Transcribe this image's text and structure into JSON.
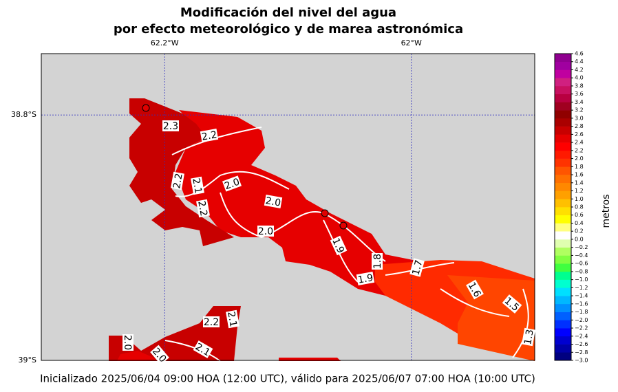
{
  "title_line1": "Modificación del nivel del agua",
  "title_line2": "por efecto meteorológico y de marea astronómica",
  "map": {
    "xlim": [
      -62.3,
      -61.9
    ],
    "ylim": [
      -39,
      -38.75
    ],
    "xticks": [
      {
        "value": -62.2,
        "label": "62.2°W"
      },
      {
        "value": -62,
        "label": "62°W"
      }
    ],
    "yticks": [
      {
        "value": -38.8,
        "label": "38.8°S"
      },
      {
        "value": -39,
        "label": "39°S"
      }
    ],
    "grid": true,
    "contour_labels": [
      "2.3",
      "2.2",
      "2.2",
      "2.1",
      "2.2",
      "2.0",
      "2.0",
      "2.0",
      "1.9",
      "1.8",
      "1.9",
      "1.7",
      "1.6",
      "1.5",
      "1.3",
      "2.2",
      "2.1",
      "2.0",
      "2.1",
      "2.0"
    ]
  },
  "colorbar": {
    "label": "metros",
    "ylim": [
      -3,
      4.6
    ],
    "yticks": [
      {
        "value": -3,
        "label": "−3.0"
      },
      {
        "value": -2.8,
        "label": "−2.8"
      },
      {
        "value": -2.6,
        "label": "−2.6"
      },
      {
        "value": -2.4,
        "label": "−2.4"
      },
      {
        "value": -2.2,
        "label": "−2.2"
      },
      {
        "value": -2,
        "label": "−2.0"
      },
      {
        "value": -1.8,
        "label": "−1.8"
      },
      {
        "value": -1.6,
        "label": "−1.6"
      },
      {
        "value": -1.4,
        "label": "−1.4"
      },
      {
        "value": -1.2,
        "label": "−1.2"
      },
      {
        "value": -1,
        "label": "−1.0"
      },
      {
        "value": -0.8,
        "label": "−0.8"
      },
      {
        "value": -0.6,
        "label": "−0.6"
      },
      {
        "value": -0.4,
        "label": "−0.4"
      },
      {
        "value": -0.2,
        "label": "−0.2"
      },
      {
        "value": 0,
        "label": "0.0"
      },
      0.2,
      0.4,
      0.6,
      0.8,
      {
        "value": 1,
        "label": "1.0"
      },
      1.2,
      1.4,
      1.6,
      1.8,
      {
        "value": 2,
        "label": "2.0"
      },
      2.2,
      2.4,
      2.6,
      2.8,
      {
        "value": 3,
        "label": "3.0"
      },
      3.2,
      3.4,
      3.6,
      3.8,
      {
        "value": 4,
        "label": "4.0"
      },
      4.2,
      4.4,
      4.6
    ],
    "colors": [
      "#000080",
      "#0000a8",
      "#0000d0",
      "#0000ff",
      "#0030ff",
      "#0060ff",
      "#0090ff",
      "#00b8ff",
      "#00e0ff",
      "#00ffd0",
      "#00ff90",
      "#40ff40",
      "#80ff40",
      "#b0ff60",
      "#e0ffb0",
      "#ffffff",
      "#ffff80",
      "#ffff00",
      "#ffe000",
      "#ffc000",
      "#ffa000",
      "#ff8800",
      "#ff7000",
      "#ff5500",
      "#ff3300",
      "#ff1a00",
      "#ff0000",
      "#e60000",
      "#c80000",
      "#aa0000",
      "#900000",
      "#a00020",
      "#b80040",
      "#c81060",
      "#d02080",
      "#c000a0",
      "#a000a0",
      "#900090"
    ]
  },
  "footer": "Inicializado 2025/06/04 09:00 HOA (12:00 UTC), válido para 2025/06/07 07:00 HOA (10:00 UTC)"
}
